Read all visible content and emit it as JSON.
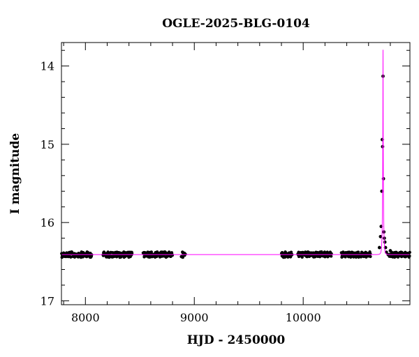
{
  "chart_data": {
    "type": "scatter",
    "title": "OGLE-2025-BLG-0104",
    "xlabel": "HJD - 2450000",
    "ylabel": "I magnitude",
    "xlim": [
      7780,
      10980
    ],
    "ylim": [
      17.05,
      13.7
    ],
    "y_inverted": true,
    "grid": false,
    "x_ticks": [
      8000,
      9000,
      10000
    ],
    "x_tick_labels": [
      "8000",
      "9000",
      "10000"
    ],
    "x_minor_step": 200,
    "y_ticks": [
      14,
      15,
      16,
      17
    ],
    "y_tick_labels": [
      "14",
      "15",
      "16",
      "17"
    ],
    "y_minor_step": 0.2,
    "baseline_mag": 16.41,
    "observing_seasons": [
      [
        7780,
        8060
      ],
      [
        8160,
        8430
      ],
      [
        8530,
        8800
      ],
      [
        8880,
        8920
      ],
      [
        9800,
        9900
      ],
      [
        9950,
        10260
      ],
      [
        10350,
        10620
      ],
      [
        10790,
        10980
      ]
    ],
    "event_points": [
      {
        "x": 10700,
        "y": 16.32
      },
      {
        "x": 10710,
        "y": 16.18
      },
      {
        "x": 10716,
        "y": 16.05
      },
      {
        "x": 10722,
        "y": 15.6
      },
      {
        "x": 10726,
        "y": 14.94
      },
      {
        "x": 10729,
        "y": 15.03
      },
      {
        "x": 10733,
        "y": 14.13
      },
      {
        "x": 10737,
        "y": 15.44
      },
      {
        "x": 10741,
        "y": 16.12
      },
      {
        "x": 10745,
        "y": 16.2
      },
      {
        "x": 10750,
        "y": 16.25
      },
      {
        "x": 10756,
        "y": 16.32
      },
      {
        "x": 10764,
        "y": 16.38
      },
      {
        "x": 10780,
        "y": 16.41
      },
      {
        "x": 10800,
        "y": 16.36
      }
    ],
    "model": {
      "name": "",
      "color": "#ff00ff",
      "t0": 10733,
      "u0": 0.09,
      "tE": 8,
      "baseline_mag": 16.41
    },
    "point_color": "#000000"
  }
}
